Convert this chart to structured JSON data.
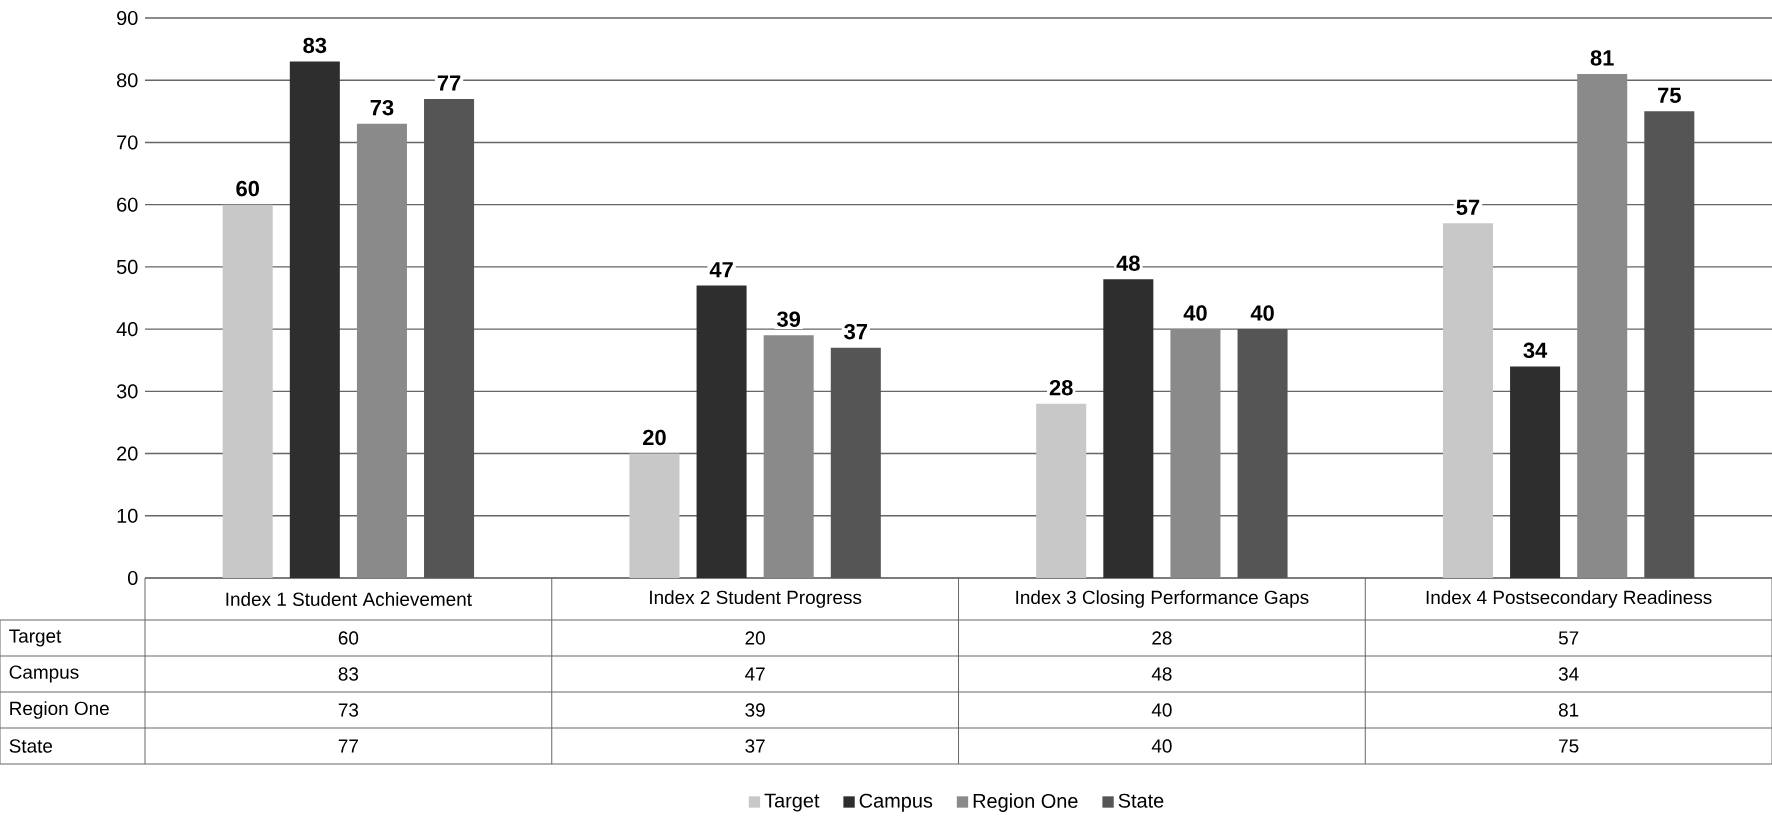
{
  "chart_data": {
    "type": "bar",
    "categories": [
      "Index 1 Student Achievement",
      "Index 2 Student Progress",
      "Index 3 Closing Performance Gaps",
      "Index 4 Postsecondary Readiness"
    ],
    "series": [
      {
        "name": "Target",
        "color": "#c8c8c8",
        "values": [
          60,
          20,
          28,
          57
        ],
        "value_labels": [
          "60",
          "20",
          "28",
          "57"
        ]
      },
      {
        "name": "Campus",
        "color": "#2e2e2e",
        "values": [
          83,
          47,
          48,
          34
        ],
        "value_labels": [
          "83",
          "47",
          "48",
          "34"
        ]
      },
      {
        "name": "Region One",
        "color": "#8a8a8a",
        "values": [
          73,
          39,
          40,
          81
        ],
        "value_labels": [
          "73",
          "39",
          "40",
          "81"
        ]
      },
      {
        "name": "State",
        "color": "#555555",
        "values": [
          77,
          37,
          40,
          75
        ],
        "value_labels": [
          "77",
          "37",
          "40",
          "75"
        ]
      }
    ],
    "ylim": [
      0,
      90
    ],
    "yticks": [
      0,
      10,
      20,
      30,
      40,
      50,
      60,
      70,
      80,
      90
    ],
    "grid": "y",
    "legend": "bottom",
    "data_labels": true
  }
}
